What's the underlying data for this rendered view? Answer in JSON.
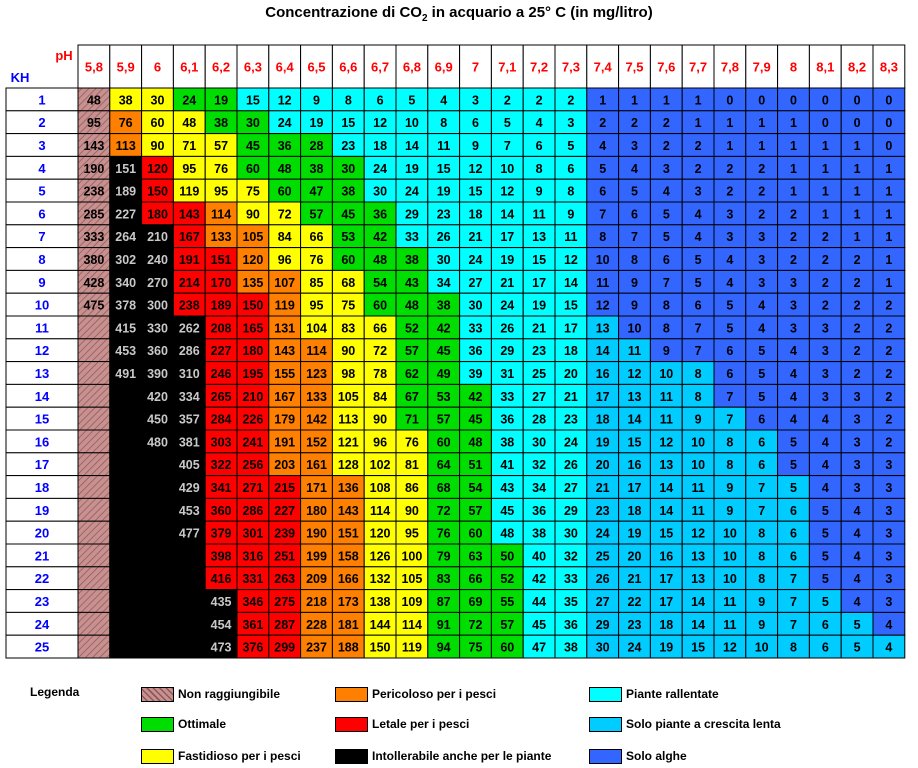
{
  "title_pre": "Concentrazione di CO",
  "title_sub": "2",
  "title_post": " in acquario a 25° C (in mg/litro)",
  "colors": {
    "N": "#c08a8a",
    "K": "#000000",
    "R": "#ff0000",
    "O": "#ff8000",
    "Y": "#ffff00",
    "G": "#00dd00",
    "C": "#00ffff",
    "L": "#00ccff",
    "B": "#3366ff",
    "header_text": "#ff0000",
    "kh_text": "#0000ff"
  },
  "chart_data": {
    "type": "table",
    "title": "Concentrazione di CO2 in acquario a 25° C (in mg/litro)",
    "column_header_label": "pH",
    "row_header_label": "KH",
    "ph": [
      "5,8",
      "5,9",
      "6",
      "6,1",
      "6,2",
      "6,3",
      "6,4",
      "6,5",
      "6,6",
      "6,7",
      "6,8",
      "6,9",
      "7",
      "7,1",
      "7,2",
      "7,3",
      "7,4",
      "7,5",
      "7,6",
      "7,7",
      "7,8",
      "7,9",
      "8",
      "8,1",
      "8,2",
      "8,3"
    ],
    "kh": [
      "1",
      "2",
      "3",
      "4",
      "5",
      "6",
      "7",
      "8",
      "9",
      "10",
      "11",
      "12",
      "13",
      "14",
      "15",
      "16",
      "17",
      "18",
      "19",
      "20",
      "21",
      "22",
      "23",
      "24",
      "25"
    ],
    "values": [
      [
        "48",
        "38",
        "30",
        "24",
        "19",
        "15",
        "12",
        "9",
        "8",
        "6",
        "5",
        "4",
        "3",
        "2",
        "2",
        "2",
        "1",
        "1",
        "1",
        "1",
        "0",
        "0",
        "0",
        "0",
        "0",
        "0"
      ],
      [
        "95",
        "76",
        "60",
        "48",
        "38",
        "30",
        "24",
        "19",
        "15",
        "12",
        "10",
        "8",
        "6",
        "5",
        "4",
        "3",
        "2",
        "2",
        "2",
        "1",
        "1",
        "1",
        "1",
        "0",
        "0",
        "0"
      ],
      [
        "143",
        "113",
        "90",
        "71",
        "57",
        "45",
        "36",
        "28",
        "23",
        "18",
        "14",
        "11",
        "9",
        "7",
        "6",
        "5",
        "4",
        "3",
        "2",
        "2",
        "1",
        "1",
        "1",
        "1",
        "1",
        "0"
      ],
      [
        "190",
        "151",
        "120",
        "95",
        "76",
        "60",
        "48",
        "38",
        "30",
        "24",
        "19",
        "15",
        "12",
        "10",
        "8",
        "6",
        "5",
        "4",
        "3",
        "2",
        "2",
        "2",
        "1",
        "1",
        "1",
        "1"
      ],
      [
        "238",
        "189",
        "150",
        "119",
        "95",
        "75",
        "60",
        "47",
        "38",
        "30",
        "24",
        "19",
        "15",
        "12",
        "9",
        "8",
        "6",
        "5",
        "4",
        "3",
        "2",
        "2",
        "1",
        "1",
        "1",
        "1"
      ],
      [
        "285",
        "227",
        "180",
        "143",
        "114",
        "90",
        "72",
        "57",
        "45",
        "36",
        "29",
        "23",
        "18",
        "14",
        "11",
        "9",
        "7",
        "6",
        "5",
        "4",
        "3",
        "2",
        "2",
        "1",
        "1",
        "1"
      ],
      [
        "333",
        "264",
        "210",
        "167",
        "133",
        "105",
        "84",
        "66",
        "53",
        "42",
        "33",
        "26",
        "21",
        "17",
        "13",
        "11",
        "8",
        "7",
        "5",
        "4",
        "3",
        "3",
        "2",
        "2",
        "1",
        "1"
      ],
      [
        "380",
        "302",
        "240",
        "191",
        "151",
        "120",
        "96",
        "76",
        "60",
        "48",
        "38",
        "30",
        "24",
        "19",
        "15",
        "12",
        "10",
        "8",
        "6",
        "5",
        "4",
        "3",
        "2",
        "2",
        "2",
        "1"
      ],
      [
        "428",
        "340",
        "270",
        "214",
        "170",
        "135",
        "107",
        "85",
        "68",
        "54",
        "43",
        "34",
        "27",
        "21",
        "17",
        "14",
        "11",
        "9",
        "7",
        "5",
        "4",
        "3",
        "3",
        "2",
        "2",
        "1"
      ],
      [
        "475",
        "378",
        "300",
        "238",
        "189",
        "150",
        "119",
        "95",
        "75",
        "60",
        "48",
        "38",
        "30",
        "24",
        "19",
        "15",
        "12",
        "9",
        "8",
        "6",
        "5",
        "4",
        "3",
        "2",
        "2",
        "2"
      ],
      [
        "",
        "415",
        "330",
        "262",
        "208",
        "165",
        "131",
        "104",
        "83",
        "66",
        "52",
        "42",
        "33",
        "26",
        "21",
        "17",
        "13",
        "10",
        "8",
        "7",
        "5",
        "4",
        "3",
        "3",
        "2",
        "2"
      ],
      [
        "",
        "453",
        "360",
        "286",
        "227",
        "180",
        "143",
        "114",
        "90",
        "72",
        "57",
        "45",
        "36",
        "29",
        "23",
        "18",
        "14",
        "11",
        "9",
        "7",
        "6",
        "5",
        "4",
        "3",
        "2",
        "2"
      ],
      [
        "",
        "491",
        "390",
        "310",
        "246",
        "195",
        "155",
        "123",
        "98",
        "78",
        "62",
        "49",
        "39",
        "31",
        "25",
        "20",
        "16",
        "12",
        "10",
        "8",
        "6",
        "5",
        "4",
        "3",
        "2",
        "2"
      ],
      [
        "",
        "",
        "420",
        "334",
        "265",
        "210",
        "167",
        "133",
        "105",
        "84",
        "67",
        "53",
        "42",
        "33",
        "27",
        "21",
        "17",
        "13",
        "11",
        "8",
        "7",
        "5",
        "4",
        "3",
        "3",
        "2"
      ],
      [
        "",
        "",
        "450",
        "357",
        "284",
        "226",
        "179",
        "142",
        "113",
        "90",
        "71",
        "57",
        "45",
        "36",
        "28",
        "23",
        "18",
        "14",
        "11",
        "9",
        "7",
        "6",
        "4",
        "4",
        "3",
        "2"
      ],
      [
        "",
        "",
        "480",
        "381",
        "303",
        "241",
        "191",
        "152",
        "121",
        "96",
        "76",
        "60",
        "48",
        "38",
        "30",
        "24",
        "19",
        "15",
        "12",
        "10",
        "8",
        "6",
        "5",
        "4",
        "3",
        "2"
      ],
      [
        "",
        "",
        "",
        "405",
        "322",
        "256",
        "203",
        "161",
        "128",
        "102",
        "81",
        "64",
        "51",
        "41",
        "32",
        "26",
        "20",
        "16",
        "13",
        "10",
        "8",
        "6",
        "5",
        "4",
        "3",
        "3"
      ],
      [
        "",
        "",
        "",
        "429",
        "341",
        "271",
        "215",
        "171",
        "136",
        "108",
        "86",
        "68",
        "54",
        "43",
        "34",
        "27",
        "21",
        "17",
        "14",
        "11",
        "9",
        "7",
        "5",
        "4",
        "3",
        "3"
      ],
      [
        "",
        "",
        "",
        "453",
        "360",
        "286",
        "227",
        "180",
        "143",
        "114",
        "90",
        "72",
        "57",
        "45",
        "36",
        "29",
        "23",
        "18",
        "14",
        "11",
        "9",
        "7",
        "6",
        "5",
        "4",
        "3"
      ],
      [
        "",
        "",
        "",
        "477",
        "379",
        "301",
        "239",
        "190",
        "151",
        "120",
        "95",
        "76",
        "60",
        "48",
        "38",
        "30",
        "24",
        "19",
        "15",
        "12",
        "10",
        "8",
        "6",
        "5",
        "4",
        "3"
      ],
      [
        "",
        "",
        "",
        "",
        "398",
        "316",
        "251",
        "199",
        "158",
        "126",
        "100",
        "79",
        "63",
        "50",
        "40",
        "32",
        "25",
        "20",
        "16",
        "13",
        "10",
        "8",
        "6",
        "5",
        "4",
        "3"
      ],
      [
        "",
        "",
        "",
        "",
        "416",
        "331",
        "263",
        "209",
        "166",
        "132",
        "105",
        "83",
        "66",
        "52",
        "42",
        "33",
        "26",
        "21",
        "17",
        "13",
        "10",
        "8",
        "7",
        "5",
        "4",
        "3"
      ],
      [
        "",
        "",
        "",
        "",
        "435",
        "346",
        "275",
        "218",
        "173",
        "138",
        "109",
        "87",
        "69",
        "55",
        "44",
        "35",
        "27",
        "22",
        "17",
        "14",
        "11",
        "9",
        "7",
        "5",
        "4",
        "3"
      ],
      [
        "",
        "",
        "",
        "",
        "454",
        "361",
        "287",
        "228",
        "181",
        "144",
        "114",
        "91",
        "72",
        "57",
        "45",
        "36",
        "29",
        "23",
        "18",
        "14",
        "11",
        "9",
        "7",
        "6",
        "5",
        "4"
      ],
      [
        "",
        "",
        "",
        "",
        "473",
        "376",
        "299",
        "237",
        "188",
        "150",
        "119",
        "94",
        "75",
        "60",
        "47",
        "38",
        "30",
        "24",
        "19",
        "15",
        "12",
        "10",
        "8",
        "6",
        "5",
        "4"
      ]
    ],
    "categories": [
      "NNNNNNNNNNNNNNNNNNNNNNNNN",
      "YOOKKKKKKKKKKKKKKKKKKKKKK",
      "YYYRRRKKKKKKKKKKKKKKKKKKK",
      "GYYYYRRRRRKKKKKKKKKKKKKKK",
      "GGYYYOORRRRRRRRRRRRRRRKKK",
      "CGGGYYOOORRRRRRRRRRRRRRRR",
      "CCGGGYYYOOOOOOOOORRRRRRRR",
      "CCGGGGYYYYYOOOOOOOOOOOOOO",
      "CCCGGGGGYYYYYYYYYOOOOOOOO",
      "CCCCCGGGGGYYYYYYYYYYYYYYY",
      "CCCCCCCGGGGGGGGYYYYYYYYYY",
      "CCCCCCCCCGGGGGGGGGGGGGGGG",
      "CCCCCCCCCCCCCGGGGGGGGGGGG",
      "CCCCCCCCCCCCCCCCCCCCGGGGG",
      "CCCCCCCCCCCCCCCCCCCCCCCCC",
      "CCCCCCCCCCCCCCCCCCCCCCCCC",
      "BBBBBBBBBBLLLLLLLLLLLLLLL",
      "BBBBBBBBBBBLLLLLLLLLLLLLL",
      "BBBBBBBBBBBBLLLLLLLLLLLLL",
      "BBBBBBBBBBBBLLLLLLLLLLLLL",
      "BBBBBBBBBBBBBBLLLLLLLLLLL",
      "BBBBBBBBBBBBBBBLLLLLLLLLL",
      "BBBBBBBBBBBBBBBBBLLLLLLLL",
      "BBBBBBBBBBBBBBBBBBBBBBLLL",
      "BBBBBBBBBBBBBBBBBBBBBBBLL",
      "BBBBBBBBBBBBBBBBBBBBBBBBL"
    ],
    "categories_orientation": "one string per pH column, one letter per KH row"
  },
  "legend": {
    "title": "Legenda",
    "items": [
      {
        "key": "N",
        "label": "Non raggiungibile"
      },
      {
        "key": "G",
        "label": "Ottimale"
      },
      {
        "key": "Y",
        "label": "Fastidioso per i pesci"
      },
      {
        "key": "O",
        "label": "Pericoloso per i pesci"
      },
      {
        "key": "R",
        "label": "Letale per i pesci"
      },
      {
        "key": "K",
        "label": "Intollerabile anche per le piante"
      },
      {
        "key": "C",
        "label": "Piante rallentate"
      },
      {
        "key": "L",
        "label": "Solo piante a crescita lenta"
      },
      {
        "key": "B",
        "label": "Solo alghe"
      }
    ]
  }
}
